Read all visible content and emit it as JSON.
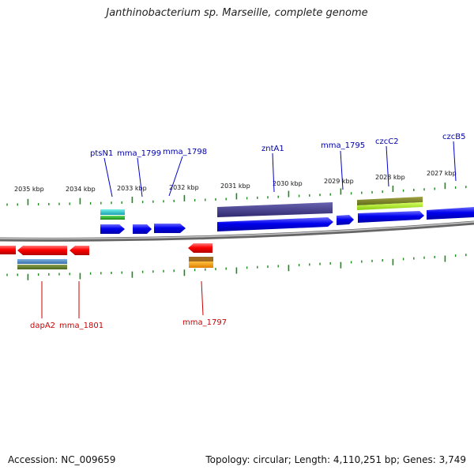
{
  "title": "Janthinobacterium sp. Marseille, complete genome",
  "accession": "Accession: NC_009659",
  "topology": "Topology: circular; Length: 4,110,251 bp; Genes: 3,749",
  "colors": {
    "forward_gene": "#0000ee",
    "reverse_gene": "#ff0000",
    "forward_label": "#0000aa",
    "reverse_label": "#cc0000",
    "backbone": "#8a8a8a",
    "tick": "#1a8a1a"
  },
  "kbp_labels": [
    {
      "text": "2035 kbp"
    },
    {
      "text": "2034 kbp"
    },
    {
      "text": "2033 kbp"
    },
    {
      "text": "2032 kbp"
    },
    {
      "text": "2031 kbp"
    },
    {
      "text": "2030 kbp"
    },
    {
      "text": "2029 kbp"
    },
    {
      "text": "2028 kbp"
    },
    {
      "text": "2027 kbp"
    }
  ],
  "forward_genes": [
    {
      "name": "ptsN1"
    },
    {
      "name": "mma_1799"
    },
    {
      "name": "mma_1798"
    },
    {
      "name": "zntA1"
    },
    {
      "name": "mma_1795"
    },
    {
      "name": "czcC2"
    },
    {
      "name": "czcB5"
    }
  ],
  "reverse_genes": [
    {
      "name": "dapA2"
    },
    {
      "name": "mma_1801"
    },
    {
      "name": "mma_1797"
    }
  ]
}
